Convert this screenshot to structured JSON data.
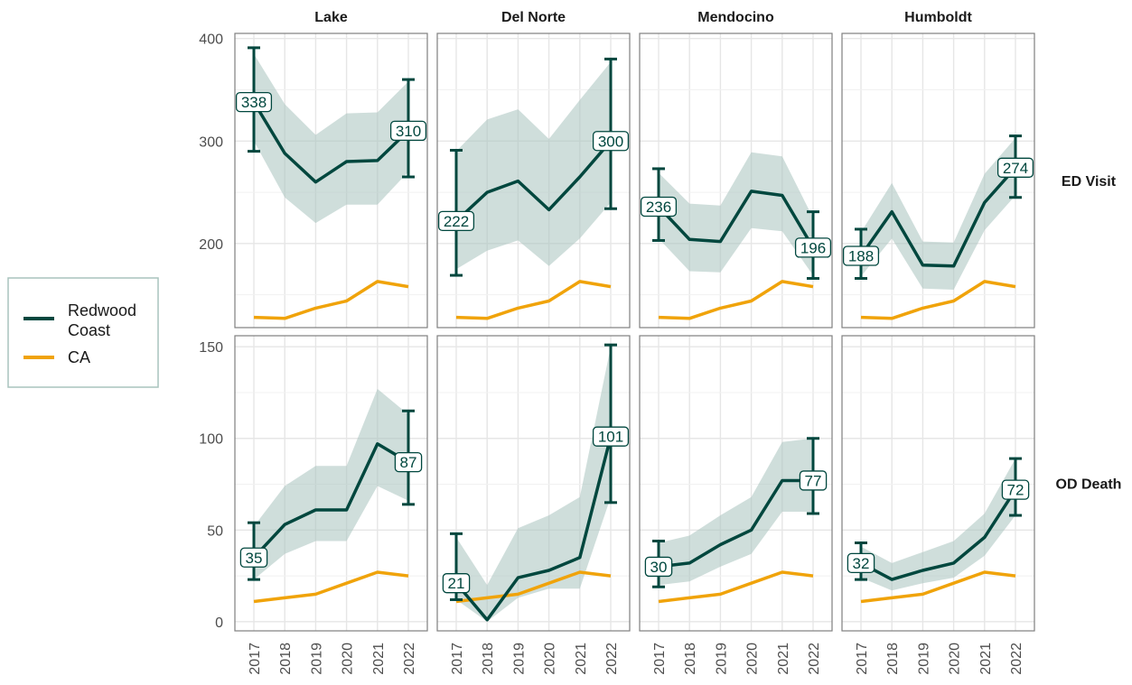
{
  "chart_data": {
    "type": "line",
    "x": [
      2017,
      2018,
      2019,
      2020,
      2021,
      2022
    ],
    "x_tick_labels": [
      "2017",
      "2018",
      "2019",
      "2020",
      "2021",
      "2022"
    ],
    "columns": [
      "Lake",
      "Del Norte",
      "Mendocino",
      "Humboldt"
    ],
    "rows": [
      {
        "name": "ED Visit",
        "ylim": [
          118,
          405
        ],
        "yticks": [
          200,
          300,
          400
        ],
        "ytick_labels": [
          "200",
          "300",
          "400"
        ]
      },
      {
        "name": "OD Death",
        "ylim": [
          -5,
          156
        ],
        "yticks": [
          0,
          50,
          100,
          150
        ],
        "ytick_labels": [
          "0",
          "50",
          "100",
          "150"
        ]
      }
    ],
    "legend": {
      "placement": "left",
      "entries": [
        {
          "label_line1": "Redwood",
          "label_line2": "Coast",
          "color": "#00473e"
        },
        {
          "label_line1": "CA",
          "label_line2": "",
          "color": "#f0a30a"
        }
      ]
    },
    "colors": {
      "redwood": "#00473e",
      "ribbon": "#a7c2be",
      "ca": "#f0a30a",
      "grid": "#e6e6e6",
      "panel_border": "#7f7f7f"
    },
    "ca": {
      "ED Visit": [
        128,
        127,
        137,
        144,
        163,
        158
      ],
      "OD Death": [
        11,
        13,
        15,
        21,
        27,
        25
      ]
    },
    "panels": [
      {
        "row": "ED Visit",
        "column": "Lake",
        "values": [
          338,
          288,
          260,
          280,
          281,
          310
        ],
        "lower": [
          300,
          245,
          220,
          238,
          238,
          270
        ],
        "upper": [
          385,
          336,
          306,
          327,
          328,
          358
        ],
        "errorbars": [
          {
            "x": 2017,
            "low": 290,
            "high": 391
          },
          {
            "x": 2022,
            "low": 265,
            "high": 360
          }
        ],
        "labels": [
          {
            "x": 2017,
            "text": "338"
          },
          {
            "x": 2022,
            "text": "310"
          }
        ]
      },
      {
        "row": "ED Visit",
        "column": "Del Norte",
        "values": [
          222,
          250,
          261,
          233,
          265,
          300
        ],
        "lower": [
          175,
          193,
          203,
          178,
          205,
          240
        ],
        "upper": [
          290,
          321,
          331,
          302,
          340,
          377
        ],
        "errorbars": [
          {
            "x": 2017,
            "low": 169,
            "high": 291
          },
          {
            "x": 2022,
            "low": 234,
            "high": 380
          }
        ],
        "labels": [
          {
            "x": 2017,
            "text": "222"
          },
          {
            "x": 2022,
            "text": "300"
          }
        ]
      },
      {
        "row": "ED Visit",
        "column": "Mendocino",
        "values": [
          236,
          204,
          202,
          251,
          247,
          196
        ],
        "lower": [
          205,
          173,
          172,
          215,
          212,
          169
        ],
        "upper": [
          269,
          239,
          237,
          289,
          285,
          225
        ],
        "errorbars": [
          {
            "x": 2017,
            "low": 203,
            "high": 273
          },
          {
            "x": 2022,
            "low": 166,
            "high": 231
          }
        ],
        "labels": [
          {
            "x": 2017,
            "text": "236"
          },
          {
            "x": 2022,
            "text": "196"
          }
        ]
      },
      {
        "row": "ED Visit",
        "column": "Humboldt",
        "values": [
          188,
          231,
          179,
          178,
          240,
          274
        ],
        "lower": [
          168,
          205,
          156,
          155,
          213,
          247
        ],
        "upper": [
          211,
          259,
          202,
          201,
          268,
          303
        ],
        "errorbars": [
          {
            "x": 2017,
            "low": 166,
            "high": 214
          },
          {
            "x": 2022,
            "low": 245,
            "high": 305
          }
        ],
        "labels": [
          {
            "x": 2017,
            "text": "188"
          },
          {
            "x": 2022,
            "text": "274"
          }
        ]
      },
      {
        "row": "OD Death",
        "column": "Lake",
        "values": [
          35,
          53,
          61,
          61,
          97,
          87
        ],
        "lower": [
          23,
          37,
          44,
          44,
          74,
          66
        ],
        "upper": [
          52,
          74,
          85,
          85,
          127,
          113
        ],
        "errorbars": [
          {
            "x": 2017,
            "low": 23,
            "high": 54
          },
          {
            "x": 2022,
            "low": 64,
            "high": 115
          }
        ],
        "labels": [
          {
            "x": 2017,
            "text": "35"
          },
          {
            "x": 2022,
            "text": "87"
          }
        ]
      },
      {
        "row": "OD Death",
        "column": "Del Norte",
        "values": [
          21,
          1,
          24,
          28,
          35,
          101
        ],
        "lower": [
          12,
          0,
          13,
          18,
          18,
          68
        ],
        "upper": [
          46,
          20,
          51,
          58,
          68,
          150
        ],
        "errorbars": [
          {
            "x": 2017,
            "low": 12,
            "high": 48
          },
          {
            "x": 2022,
            "low": 65,
            "high": 151
          }
        ],
        "labels": [
          {
            "x": 2017,
            "text": "21"
          },
          {
            "x": 2022,
            "text": "101"
          }
        ]
      },
      {
        "row": "OD Death",
        "column": "Mendocino",
        "values": [
          30,
          32,
          42,
          50,
          77,
          77
        ],
        "lower": [
          20,
          22,
          30,
          37,
          60,
          60
        ],
        "upper": [
          43,
          47,
          58,
          68,
          98,
          100
        ],
        "errorbars": [
          {
            "x": 2017,
            "low": 19,
            "high": 44
          },
          {
            "x": 2022,
            "low": 59,
            "high": 100
          }
        ],
        "labels": [
          {
            "x": 2017,
            "text": "30"
          },
          {
            "x": 2022,
            "text": "77"
          }
        ]
      },
      {
        "row": "OD Death",
        "column": "Humboldt",
        "values": [
          32,
          23,
          28,
          32,
          46,
          72
        ],
        "lower": [
          24,
          17,
          21,
          24,
          36,
          58
        ],
        "upper": [
          41,
          32,
          38,
          44,
          59,
          89
        ],
        "errorbars": [
          {
            "x": 2017,
            "low": 23,
            "high": 43
          },
          {
            "x": 2022,
            "low": 58,
            "high": 89
          }
        ],
        "labels": [
          {
            "x": 2017,
            "text": "32"
          },
          {
            "x": 2022,
            "text": "72"
          }
        ]
      }
    ]
  }
}
